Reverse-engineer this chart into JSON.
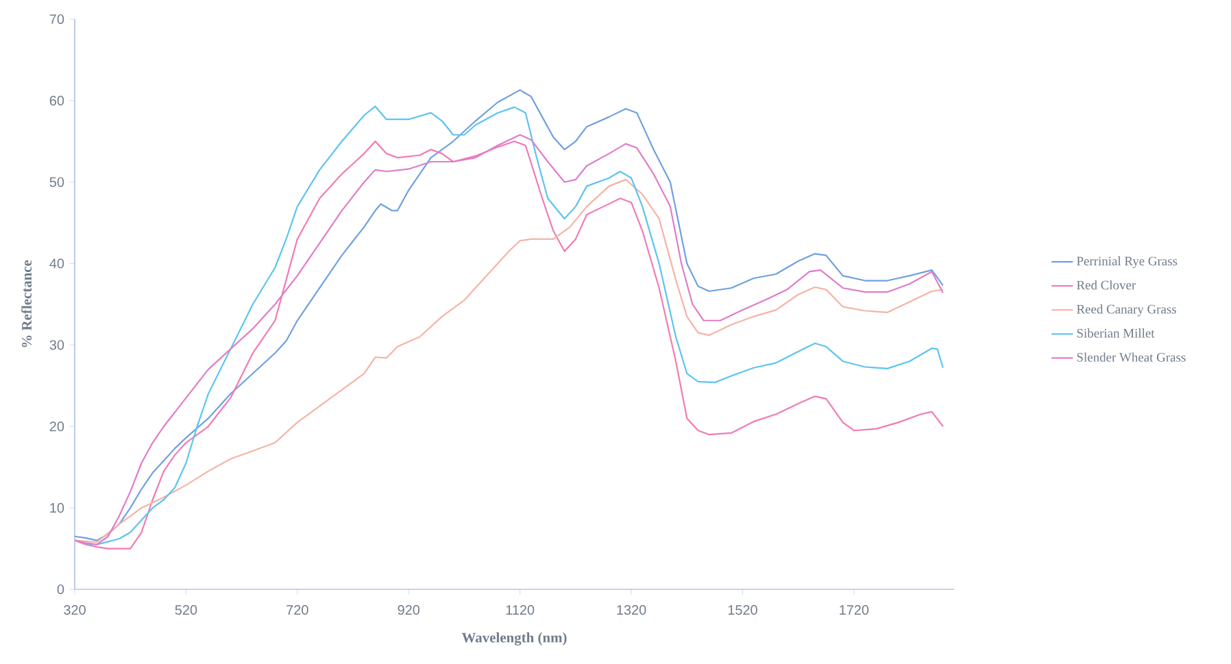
{
  "chart_data": {
    "type": "line",
    "xlabel": "Wavelength (nm)",
    "ylabel": "% Reflectance",
    "xlim": [
      320,
      1900
    ],
    "xticks": [
      320,
      520,
      720,
      920,
      1120,
      1320,
      1520,
      1720
    ],
    "ylim": [
      0,
      70
    ],
    "yticks": [
      0,
      10,
      20,
      30,
      40,
      50,
      60,
      70
    ],
    "legend": "right",
    "marker": "none",
    "grid": false,
    "series": [
      {
        "name": "Perrinial Rye Grass",
        "color": "#6fa0e0",
        "x": [
          320,
          340,
          360,
          380,
          400,
          420,
          440,
          460,
          480,
          500,
          520,
          560,
          600,
          640,
          680,
          700,
          720,
          760,
          800,
          840,
          860,
          870,
          890,
          900,
          920,
          960,
          1000,
          1040,
          1080,
          1120,
          1140,
          1160,
          1180,
          1200,
          1220,
          1240,
          1280,
          1310,
          1330,
          1360,
          1390,
          1420,
          1440,
          1460,
          1500,
          1540,
          1580,
          1620,
          1650,
          1670,
          1700,
          1740,
          1780,
          1820,
          1860,
          1880
        ],
        "values": [
          6.5,
          6.3,
          6.0,
          6.8,
          8,
          10,
          12.3,
          14.3,
          15.8,
          17.3,
          18.6,
          21,
          24,
          26.5,
          29,
          30.5,
          33,
          37,
          41,
          44.5,
          46.5,
          47.3,
          46.5,
          46.5,
          49,
          53,
          55,
          57.5,
          59.8,
          61.3,
          60.5,
          58,
          55.5,
          54,
          55,
          56.8,
          58,
          59,
          58.5,
          54,
          50,
          40,
          37.2,
          36.6,
          37,
          38.2,
          38.7,
          40.3,
          41.2,
          41,
          38.5,
          37.9,
          37.9,
          38.5,
          39.2,
          37.3
        ]
      },
      {
        "name": "Red Clover",
        "color": "#f27ab4",
        "x": [
          320,
          340,
          360,
          380,
          420,
          440,
          460,
          480,
          500,
          520,
          560,
          600,
          640,
          680,
          700,
          720,
          760,
          800,
          840,
          860,
          880,
          900,
          940,
          960,
          980,
          1000,
          1040,
          1080,
          1110,
          1130,
          1160,
          1180,
          1200,
          1220,
          1240,
          1270,
          1300,
          1320,
          1340,
          1370,
          1400,
          1420,
          1440,
          1460,
          1500,
          1540,
          1580,
          1620,
          1650,
          1670,
          1700,
          1720,
          1760,
          1800,
          1840,
          1860,
          1880
        ],
        "values": [
          6,
          5.5,
          5.2,
          5,
          5,
          7,
          11,
          14.5,
          16.5,
          18,
          20,
          23.5,
          29,
          33,
          38,
          43,
          48,
          51,
          53.5,
          55,
          53.5,
          53,
          53.3,
          54,
          53.5,
          52.5,
          53.2,
          54.3,
          55,
          54.5,
          48,
          44,
          41.5,
          43,
          46,
          47,
          48,
          47.5,
          44,
          37,
          28,
          21,
          19.5,
          19,
          19.2,
          20.6,
          21.5,
          22.8,
          23.7,
          23.4,
          20.5,
          19.5,
          19.7,
          20.5,
          21.5,
          21.8,
          20
        ]
      },
      {
        "name": "Reed Canary Grass",
        "color": "#f5b3a5",
        "x": [
          320,
          360,
          400,
          440,
          480,
          520,
          560,
          600,
          640,
          680,
          720,
          760,
          800,
          840,
          860,
          880,
          900,
          940,
          980,
          1020,
          1060,
          1100,
          1120,
          1140,
          1180,
          1210,
          1240,
          1280,
          1310,
          1340,
          1370,
          1400,
          1420,
          1440,
          1460,
          1500,
          1540,
          1580,
          1620,
          1650,
          1670,
          1700,
          1740,
          1780,
          1820,
          1860,
          1880
        ],
        "values": [
          6,
          5.8,
          8,
          10,
          11.3,
          12.8,
          14.5,
          16,
          17,
          18,
          20.5,
          22.5,
          24.5,
          26.5,
          28.5,
          28.4,
          29.8,
          31,
          33.5,
          35.5,
          38.5,
          41.5,
          42.8,
          43,
          43,
          44.5,
          47,
          49.5,
          50.3,
          48.5,
          45.5,
          38,
          33.5,
          31.5,
          31.2,
          32.5,
          33.5,
          34.3,
          36.2,
          37.1,
          36.8,
          34.7,
          34.2,
          34,
          35.3,
          36.6,
          36.8
        ]
      },
      {
        "name": "Siberian Millet",
        "color": "#5bc4f0",
        "x": [
          340,
          360,
          400,
          420,
          440,
          460,
          480,
          500,
          520,
          540,
          560,
          600,
          640,
          680,
          700,
          720,
          760,
          800,
          840,
          860,
          880,
          920,
          960,
          980,
          1000,
          1020,
          1040,
          1080,
          1110,
          1130,
          1150,
          1170,
          1200,
          1220,
          1240,
          1280,
          1300,
          1320,
          1340,
          1370,
          1400,
          1420,
          1440,
          1470,
          1500,
          1540,
          1580,
          1620,
          1650,
          1670,
          1700,
          1740,
          1780,
          1820,
          1860,
          1870,
          1880
        ],
        "values": [
          5.6,
          5.5,
          6.2,
          7,
          8.5,
          10,
          11,
          12.5,
          15.5,
          20,
          24,
          29.5,
          35,
          39.5,
          43,
          47,
          51.5,
          55,
          58.2,
          59.3,
          57.7,
          57.7,
          58.5,
          57.5,
          55.8,
          55.8,
          57,
          58.5,
          59.2,
          58.5,
          53,
          48,
          45.5,
          47,
          49.5,
          50.5,
          51.3,
          50.5,
          47,
          40,
          31,
          26.5,
          25.5,
          25.4,
          26.2,
          27.2,
          27.8,
          29.2,
          30.2,
          29.8,
          28,
          27.3,
          27.1,
          28,
          29.6,
          29.5,
          27.2
        ]
      },
      {
        "name": "Slender Wheat Grass",
        "color": "#e07cc8",
        "x": [
          320,
          340,
          360,
          380,
          400,
          420,
          440,
          460,
          480,
          520,
          560,
          600,
          640,
          680,
          720,
          760,
          800,
          840,
          860,
          880,
          920,
          960,
          1000,
          1040,
          1080,
          1120,
          1140,
          1170,
          1200,
          1220,
          1240,
          1280,
          1310,
          1330,
          1360,
          1390,
          1410,
          1430,
          1450,
          1480,
          1520,
          1560,
          1600,
          1640,
          1660,
          1700,
          1740,
          1780,
          1820,
          1860,
          1880
        ],
        "values": [
          6,
          5.7,
          5.5,
          6.5,
          9,
          12,
          15.5,
          18,
          20,
          23.5,
          27,
          29.5,
          32,
          35,
          38.5,
          42.5,
          46.5,
          50,
          51.5,
          51.3,
          51.6,
          52.5,
          52.5,
          53,
          54.5,
          55.8,
          55.2,
          52.5,
          50,
          50.3,
          52,
          53.5,
          54.7,
          54.2,
          51,
          47,
          40,
          35,
          33,
          33,
          34.3,
          35.5,
          36.8,
          39,
          39.2,
          37,
          36.5,
          36.5,
          37.5,
          39,
          36.4
        ]
      }
    ]
  }
}
